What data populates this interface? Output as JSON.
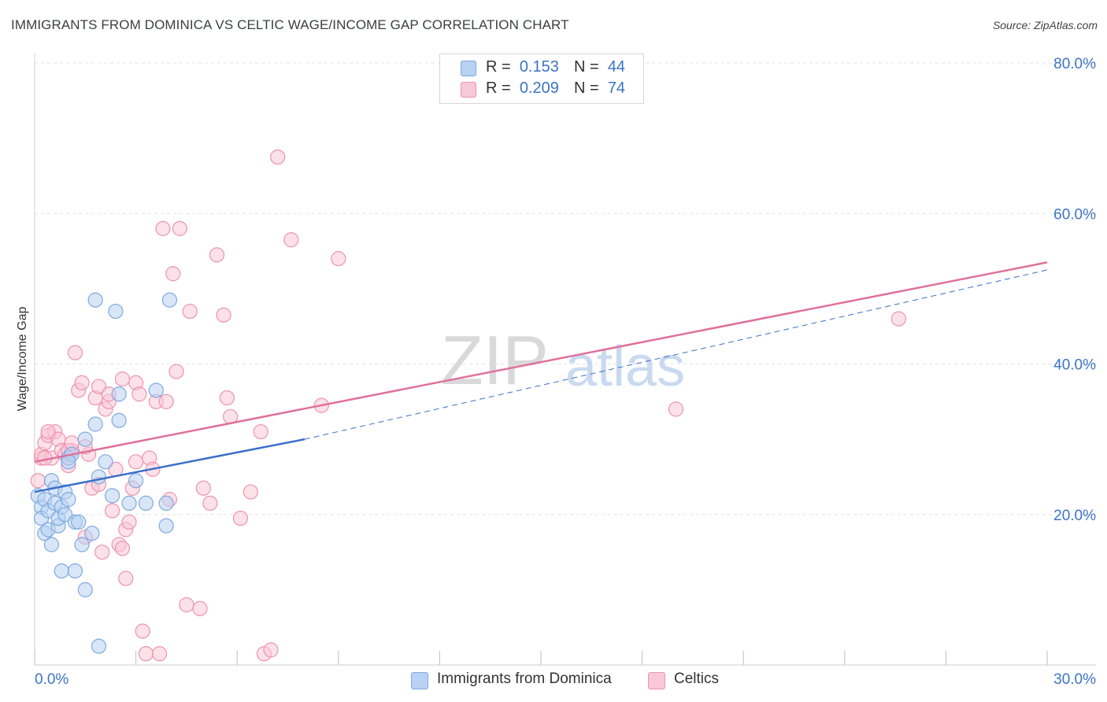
{
  "header": {
    "title": "IMMIGRANTS FROM DOMINICA VS CELTIC WAGE/INCOME GAP CORRELATION CHART",
    "source": "Source: ZipAtlas.com"
  },
  "legend": {
    "rows": [
      {
        "r_label": "R =",
        "r_value": "0.153",
        "n_label": "N =",
        "n_value": "44",
        "color": "#a8c8f0"
      },
      {
        "r_label": "R =",
        "r_value": "0.209",
        "n_label": "N =",
        "n_value": "74",
        "color": "#f7b9cc"
      }
    ]
  },
  "bottom_legend": [
    {
      "label": "Immigrants from Dominica",
      "color": "#a8c8f0"
    },
    {
      "label": "Celtics",
      "color": "#f7b9cc"
    }
  ],
  "watermark": {
    "zip": "ZIP",
    "atlas": "atlas"
  },
  "chart_data": {
    "type": "scatter",
    "title": "IMMIGRANTS FROM DOMINICA VS CELTIC WAGE/INCOME GAP CORRELATION CHART",
    "xlabel": "",
    "ylabel": "Wage/Income Gap",
    "xlim": [
      0,
      30
    ],
    "ylim": [
      0,
      80
    ],
    "x_tick_labels": [
      "0.0%",
      "30.0%"
    ],
    "y_tick_labels": [
      "20.0%",
      "40.0%",
      "60.0%",
      "80.0%"
    ],
    "y_ticks": [
      20,
      40,
      60,
      80
    ],
    "grid": true,
    "series": [
      {
        "name": "Immigrants from Dominica",
        "color": "#7fa9e0",
        "fill": "#b8d2f3",
        "points": [
          [
            0.1,
            22.5
          ],
          [
            0.2,
            21.0
          ],
          [
            0.2,
            19.5
          ],
          [
            0.3,
            17.5
          ],
          [
            0.3,
            22.0
          ],
          [
            0.4,
            20.5
          ],
          [
            0.4,
            18.0
          ],
          [
            0.5,
            16.0
          ],
          [
            0.5,
            24.5
          ],
          [
            0.6,
            23.5
          ],
          [
            0.6,
            21.5
          ],
          [
            0.7,
            18.5
          ],
          [
            0.7,
            19.5
          ],
          [
            0.8,
            12.5
          ],
          [
            0.8,
            21.0
          ],
          [
            0.9,
            23.0
          ],
          [
            0.9,
            20.0
          ],
          [
            1.0,
            22.0
          ],
          [
            1.0,
            27.5
          ],
          [
            1.1,
            28.0
          ],
          [
            1.2,
            12.5
          ],
          [
            1.2,
            19.0
          ],
          [
            1.3,
            19.0
          ],
          [
            1.4,
            16.0
          ],
          [
            1.5,
            30.0
          ],
          [
            1.5,
            10.0
          ],
          [
            1.7,
            17.5
          ],
          [
            1.8,
            32.0
          ],
          [
            1.8,
            48.5
          ],
          [
            1.9,
            2.5
          ],
          [
            2.1,
            27.0
          ],
          [
            2.3,
            22.5
          ],
          [
            2.4,
            47.0
          ],
          [
            2.5,
            32.5
          ],
          [
            1.9,
            25.0
          ],
          [
            2.5,
            36.0
          ],
          [
            2.8,
            21.5
          ],
          [
            3.0,
            24.5
          ],
          [
            3.6,
            36.5
          ],
          [
            3.9,
            18.5
          ],
          [
            1.0,
            27.0
          ],
          [
            4.0,
            48.5
          ],
          [
            3.9,
            21.5
          ],
          [
            3.3,
            21.5
          ]
        ]
      },
      {
        "name": "Celtics",
        "color": "#ec93b0",
        "fill": "#f9c8d7",
        "points": [
          [
            0.1,
            24.5
          ],
          [
            0.2,
            27.5
          ],
          [
            0.2,
            28.0
          ],
          [
            0.3,
            29.5
          ],
          [
            0.4,
            30.5
          ],
          [
            0.5,
            27.5
          ],
          [
            0.6,
            31.0
          ],
          [
            0.7,
            30.0
          ],
          [
            0.8,
            28.5
          ],
          [
            0.9,
            28.0
          ],
          [
            1.0,
            26.5
          ],
          [
            1.1,
            28.5
          ],
          [
            1.2,
            41.5
          ],
          [
            1.3,
            36.5
          ],
          [
            1.4,
            37.5
          ],
          [
            1.5,
            17.0
          ],
          [
            1.6,
            28.0
          ],
          [
            1.7,
            23.5
          ],
          [
            1.8,
            35.5
          ],
          [
            1.9,
            37.0
          ],
          [
            2.0,
            15.0
          ],
          [
            2.1,
            34.0
          ],
          [
            2.2,
            35.0
          ],
          [
            2.3,
            20.5
          ],
          [
            2.4,
            26.0
          ],
          [
            2.5,
            16.0
          ],
          [
            2.6,
            15.5
          ],
          [
            2.7,
            18.0
          ],
          [
            2.8,
            19.0
          ],
          [
            2.9,
            23.5
          ],
          [
            3.0,
            37.5
          ],
          [
            3.1,
            36.0
          ],
          [
            3.2,
            4.5
          ],
          [
            3.3,
            1.5
          ],
          [
            3.4,
            27.5
          ],
          [
            3.5,
            26.0
          ],
          [
            3.6,
            35.0
          ],
          [
            3.7,
            1.5
          ],
          [
            3.8,
            58.0
          ],
          [
            3.9,
            35.0
          ],
          [
            4.0,
            22.0
          ],
          [
            4.1,
            52.0
          ],
          [
            4.2,
            39.0
          ],
          [
            4.3,
            58.0
          ],
          [
            4.5,
            8.0
          ],
          [
            4.6,
            47.0
          ],
          [
            4.9,
            7.5
          ],
          [
            5.0,
            23.5
          ],
          [
            5.2,
            21.5
          ],
          [
            5.4,
            54.5
          ],
          [
            5.6,
            46.5
          ],
          [
            5.7,
            35.5
          ],
          [
            5.8,
            33.0
          ],
          [
            6.1,
            19.5
          ],
          [
            6.4,
            23.0
          ],
          [
            6.7,
            31.0
          ],
          [
            6.8,
            1.5
          ],
          [
            7.0,
            2.0
          ],
          [
            7.2,
            67.5
          ],
          [
            7.6,
            56.5
          ],
          [
            8.5,
            34.5
          ],
          [
            9.0,
            54.0
          ],
          [
            1.0,
            28.5
          ],
          [
            0.3,
            27.5
          ],
          [
            2.2,
            36.0
          ],
          [
            2.6,
            38.0
          ],
          [
            2.7,
            11.5
          ],
          [
            3.0,
            27.0
          ],
          [
            1.9,
            24.0
          ],
          [
            1.1,
            29.5
          ],
          [
            19.0,
            34.0
          ],
          [
            25.6,
            46.0
          ],
          [
            0.4,
            31.0
          ],
          [
            1.5,
            29.0
          ]
        ]
      }
    ],
    "trend_lines": [
      {
        "series": "Immigrants from Dominica",
        "color": "#3a6fc9",
        "solid": [
          [
            0.0,
            23.0
          ],
          [
            8.0,
            30.0
          ]
        ],
        "dashed": [
          [
            8.0,
            30.0
          ],
          [
            30.0,
            52.5
          ]
        ]
      },
      {
        "series": "Celtics",
        "color": "#e0719a",
        "solid": [
          [
            0.0,
            27.0
          ],
          [
            30.0,
            53.5
          ]
        ]
      }
    ]
  }
}
